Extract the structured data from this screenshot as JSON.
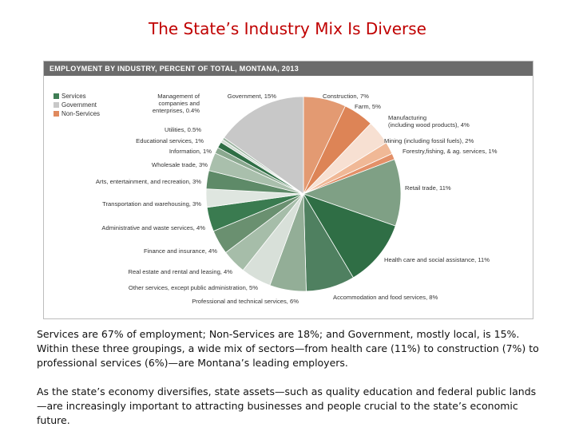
{
  "slide": {
    "title": "The State’s Industry Mix Is Diverse",
    "paragraph1": "Services are 67% of employment; Non-Services are 18%; and Government, mostly local, is 15%.  Within these three groupings, a wide mix of sectors—from health care (11%) to construction (7%) to professional services (6%)—are Montana’s leading employers.",
    "paragraph2": "As the state’s economy diversifies, state assets—such as quality education and federal public lands—are increasingly important to attracting businesses and people crucial to the state’s economic future."
  },
  "chart_data": {
    "type": "pie",
    "title": "EMPLOYMENT BY INDUSTRY, PERCENT OF TOTAL, MONTANA, 2013",
    "legend": [
      {
        "name": "Services",
        "color": "#3f7d54"
      },
      {
        "name": "Government",
        "color": "#c8c8c8"
      },
      {
        "name": "Non-Services",
        "color": "#e08a5e"
      }
    ],
    "legend_position": "top-left",
    "slices": [
      {
        "label": "Construction, 7%",
        "value": 7,
        "group": "Non-Services",
        "color": "#e39a72"
      },
      {
        "label": "Farm, 5%",
        "value": 5,
        "group": "Non-Services",
        "color": "#dd8456"
      },
      {
        "label": "Manufacturing (including wood products), 4%",
        "value": 4,
        "group": "Non-Services",
        "color": "#f7e0d2"
      },
      {
        "label": "Mining (including fossil fuels), 2%",
        "value": 2,
        "group": "Non-Services",
        "color": "#f0b896"
      },
      {
        "label": "Forestry,fishing, & ag. services, 1%",
        "value": 1,
        "group": "Non-Services",
        "color": "#e39068"
      },
      {
        "label": "Retail trade, 11%",
        "value": 11,
        "group": "Services",
        "color": "#7fa085"
      },
      {
        "label": "Health care and social assistance, 11%",
        "value": 11,
        "group": "Services",
        "color": "#2f6e45"
      },
      {
        "label": "Accommodation and food services, 8%",
        "value": 8,
        "group": "Services",
        "color": "#4f8060"
      },
      {
        "label": "Professional and technical services, 6%",
        "value": 6,
        "group": "Services",
        "color": "#93ae97"
      },
      {
        "label": "Other services, except public administration, 5%",
        "value": 5,
        "group": "Services",
        "color": "#d8e0d9"
      },
      {
        "label": "Real estate and rental and leasing, 4%",
        "value": 4,
        "group": "Services",
        "color": "#a6bda9"
      },
      {
        "label": "Finance and insurance, 4%",
        "value": 4,
        "group": "Services",
        "color": "#6a9070"
      },
      {
        "label": "Administrative and waste services, 4%",
        "value": 4,
        "group": "Services",
        "color": "#3a7b50"
      },
      {
        "label": "Transportation and warehousing, 3%",
        "value": 3,
        "group": "Services",
        "color": "#dfe6e0"
      },
      {
        "label": "Arts, entertainment, and recreation, 3%",
        "value": 3,
        "group": "Services",
        "color": "#5e8a68"
      },
      {
        "label": "Wholesale trade, 3%",
        "value": 3,
        "group": "Services",
        "color": "#a9bfac"
      },
      {
        "label": "Information, 1%",
        "value": 1,
        "group": "Services",
        "color": "#8aa88f"
      },
      {
        "label": "Educational services, 1%",
        "value": 1,
        "group": "Services",
        "color": "#2f6e45"
      },
      {
        "label": "Utilities, 0.5%",
        "value": 0.5,
        "group": "Services",
        "color": "#d0dbd2"
      },
      {
        "label": "Management of companies and enterprises, 0.4%",
        "value": 0.4,
        "group": "Services",
        "color": "#9bb4a0"
      },
      {
        "label": "Government, 15%",
        "value": 15,
        "group": "Government",
        "color": "#c8c8c8"
      }
    ]
  }
}
